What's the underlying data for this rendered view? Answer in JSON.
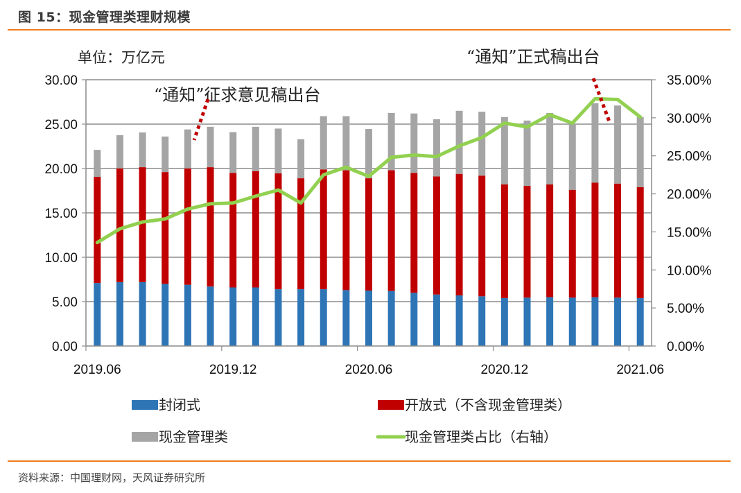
{
  "figure": {
    "title": "图 15：现金管理类理财规模",
    "source": "资料来源：中国理财网，天风证券研究所"
  },
  "chart_data": {
    "type": "bar",
    "stacked": true,
    "title": "现金管理类理财规模",
    "unit_label": "单位：万亿元",
    "xlabel": "",
    "ylabel": "万亿元",
    "y2label": "现金管理类占比（右轴）",
    "categories": [
      "2019.06",
      "2019.07",
      "2019.08",
      "2019.09",
      "2019.10",
      "2019.11",
      "2019.12",
      "2020.01",
      "2020.02",
      "2020.03",
      "2020.04",
      "2020.05",
      "2020.06",
      "2020.07",
      "2020.08",
      "2020.09",
      "2020.10",
      "2020.11",
      "2020.12",
      "2021.01",
      "2021.02",
      "2021.03",
      "2021.04",
      "2021.05",
      "2021.06"
    ],
    "x_tick_labels": [
      "2019.06",
      "2019.12",
      "2020.06",
      "2020.12",
      "2021.06"
    ],
    "x_tick_every": 6,
    "ylim": [
      0,
      30
    ],
    "y_ticks": [
      "0.00",
      "5.00",
      "10.00",
      "15.00",
      "20.00",
      "25.00",
      "30.00"
    ],
    "y2lim": [
      0,
      35
    ],
    "y2_ticks": [
      "0.00%",
      "5.00%",
      "10.00%",
      "15.00%",
      "20.00%",
      "25.00%",
      "30.00%",
      "35.00%"
    ],
    "grid": true,
    "legend_position": "bottom",
    "series": [
      {
        "name": "封闭式",
        "kind": "bar",
        "color": "#2e75b6",
        "values": [
          7.1,
          7.2,
          7.2,
          7.0,
          6.9,
          6.7,
          6.6,
          6.6,
          6.4,
          6.4,
          6.4,
          6.3,
          6.25,
          6.2,
          6.0,
          5.8,
          5.7,
          5.6,
          5.4,
          5.45,
          5.5,
          5.45,
          5.5,
          5.45,
          5.4
        ]
      },
      {
        "name": "开放式（不含现金管理类）",
        "kind": "bar",
        "color": "#c00000",
        "values": [
          11.96,
          12.8,
          12.95,
          12.6,
          13.1,
          13.45,
          12.9,
          13.1,
          13.05,
          12.5,
          13.5,
          13.5,
          12.65,
          13.6,
          13.5,
          13.3,
          13.7,
          13.6,
          12.8,
          12.6,
          12.7,
          12.15,
          12.9,
          12.85,
          12.5
        ]
      },
      {
        "name": "现金管理类",
        "kind": "bar",
        "color": "#a5a5a5",
        "values": [
          3.04,
          3.75,
          3.91,
          4.0,
          4.4,
          4.55,
          4.6,
          5.0,
          5.05,
          4.4,
          6.0,
          6.1,
          5.55,
          6.45,
          6.7,
          6.45,
          7.1,
          7.2,
          7.6,
          7.35,
          8.05,
          7.4,
          8.95,
          8.8,
          7.9
        ]
      },
      {
        "name": "现金管理类占比（右轴）",
        "kind": "line",
        "axis": "right",
        "color": "#92d050",
        "values": [
          13.6,
          15.4,
          16.3,
          16.7,
          18.0,
          18.7,
          18.8,
          19.7,
          20.5,
          18.8,
          22.5,
          23.5,
          22.3,
          24.8,
          25.1,
          24.9,
          26.3,
          27.4,
          29.3,
          28.8,
          30.4,
          29.3,
          32.5,
          32.4,
          30.1
        ]
      }
    ],
    "annotations": [
      {
        "text": "“通知”征求意见稿出台",
        "near_category": "2019.11"
      },
      {
        "text": "“通知”正式稿出台",
        "near_category": "2021.05"
      }
    ]
  }
}
